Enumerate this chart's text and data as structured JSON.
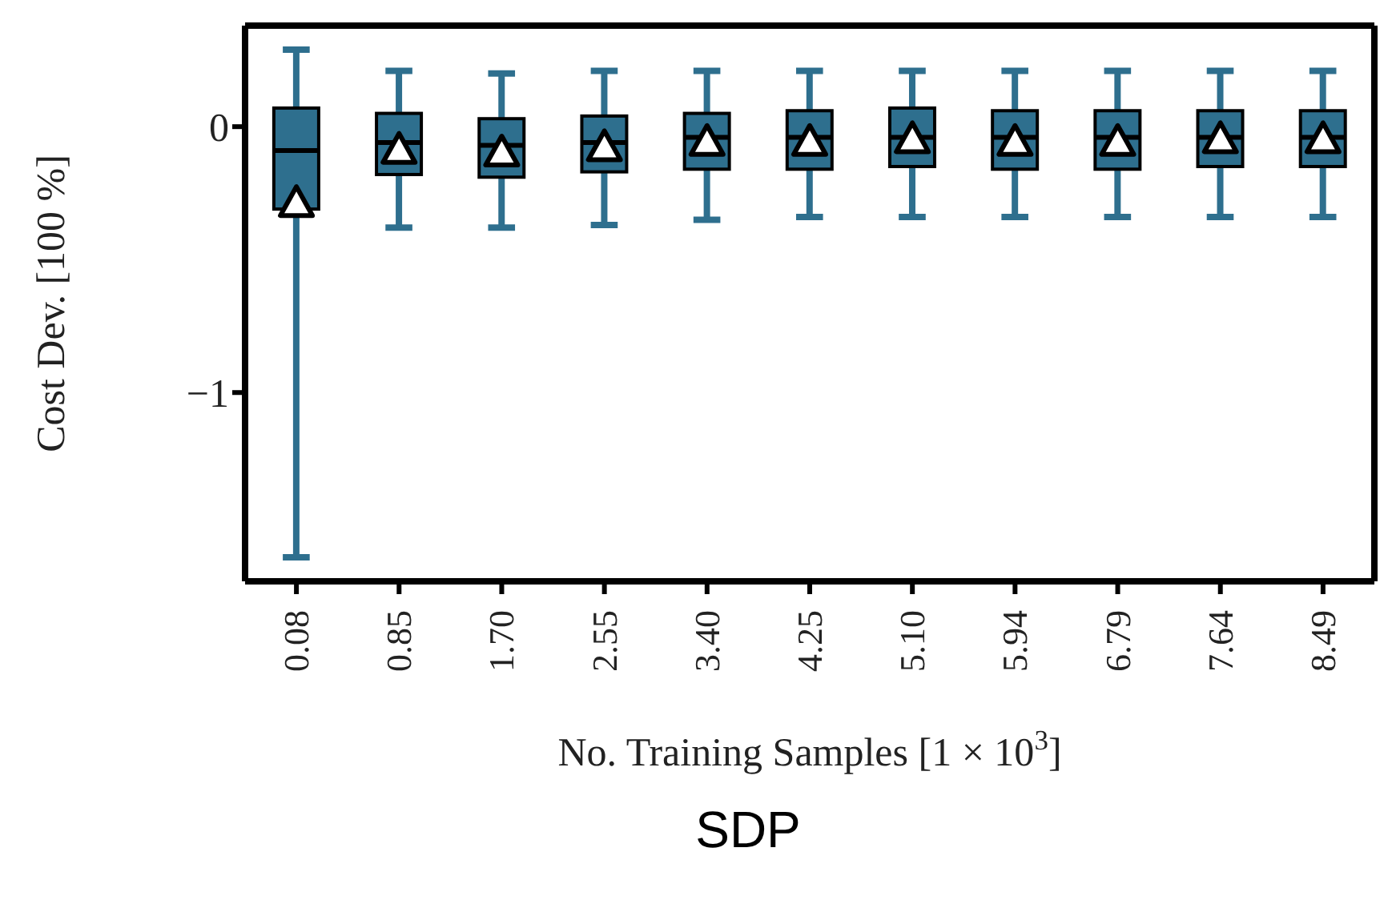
{
  "chart_data": {
    "type": "box",
    "title": "SDP",
    "xlabel": "No. Training Samples [1 × 10$^{3}$]",
    "ylabel": "Cost Dev. [100 %]",
    "categories": [
      "0.08",
      "0.85",
      "1.70",
      "2.55",
      "3.40",
      "4.25",
      "5.10",
      "5.94",
      "6.79",
      "7.64",
      "8.49"
    ],
    "ylim": [
      -1.71,
      0.38
    ],
    "yticks": [
      0,
      {
        "value": -1,
        "label": "−1"
      }
    ],
    "grid": false,
    "marker": "triangle",
    "series": [
      {
        "color": "#2e6f8e",
        "boxes": [
          {
            "low": -1.62,
            "q1": -0.31,
            "median": -0.09,
            "q3": 0.07,
            "high": 0.29,
            "mean": -0.28
          },
          {
            "low": -0.38,
            "q1": -0.18,
            "median": -0.06,
            "q3": 0.05,
            "high": 0.21,
            "mean": -0.08
          },
          {
            "low": -0.38,
            "q1": -0.19,
            "median": -0.07,
            "q3": 0.03,
            "high": 0.2,
            "mean": -0.09
          },
          {
            "low": -0.37,
            "q1": -0.17,
            "median": -0.06,
            "q3": 0.04,
            "high": 0.21,
            "mean": -0.07
          },
          {
            "low": -0.35,
            "q1": -0.16,
            "median": -0.04,
            "q3": 0.05,
            "high": 0.21,
            "mean": -0.05
          },
          {
            "low": -0.34,
            "q1": -0.16,
            "median": -0.04,
            "q3": 0.06,
            "high": 0.21,
            "mean": -0.05
          },
          {
            "low": -0.34,
            "q1": -0.15,
            "median": -0.04,
            "q3": 0.07,
            "high": 0.21,
            "mean": -0.04
          },
          {
            "low": -0.34,
            "q1": -0.16,
            "median": -0.04,
            "q3": 0.06,
            "high": 0.21,
            "mean": -0.05
          },
          {
            "low": -0.34,
            "q1": -0.16,
            "median": -0.04,
            "q3": 0.06,
            "high": 0.21,
            "mean": -0.05
          },
          {
            "low": -0.34,
            "q1": -0.15,
            "median": -0.04,
            "q3": 0.06,
            "high": 0.21,
            "mean": -0.04
          },
          {
            "low": -0.34,
            "q1": -0.15,
            "median": -0.04,
            "q3": 0.06,
            "high": 0.21,
            "mean": -0.04
          }
        ]
      }
    ]
  }
}
